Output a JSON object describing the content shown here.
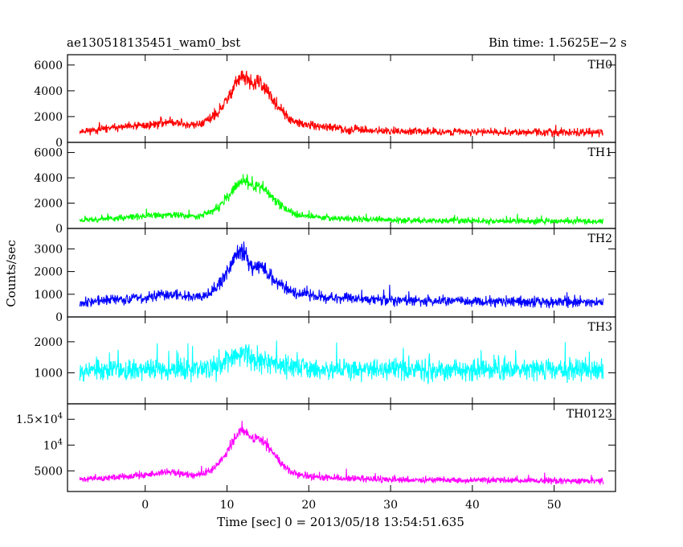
{
  "header": {
    "title": "ae130518135451_wam0_bst",
    "bin_time": "Bin time: 1.5625E−2 s"
  },
  "axis": {
    "ylabel": "Counts/sec",
    "xlabel": "Time [sec] 0 = 2013/05/18 13:54:51.635"
  },
  "chart_data": [
    {
      "type": "line",
      "name": "TH0",
      "color": "#ff0000",
      "x_range": [
        -8.0,
        56.0
      ],
      "xlim": [
        -9.5,
        57.5
      ],
      "ylim": [
        0,
        6800
      ],
      "yticks": [
        {
          "v": 0,
          "label": "0"
        },
        {
          "v": 2000,
          "label": "2000"
        },
        {
          "v": 4000,
          "label": "4000"
        },
        {
          "v": 6000,
          "label": "6000"
        }
      ],
      "profile_x": [
        -8,
        -4,
        0,
        3,
        6,
        8,
        9,
        10,
        11,
        12,
        13,
        14,
        15,
        16,
        17,
        18,
        20,
        25,
        30,
        40,
        50,
        56
      ],
      "profile_y": [
        850,
        1100,
        1300,
        1600,
        1300,
        1800,
        2300,
        3300,
        4600,
        5100,
        4500,
        4700,
        3800,
        3000,
        2200,
        1600,
        1300,
        1000,
        850,
        800,
        770,
        750
      ],
      "noise_sd": 260,
      "seed": 11
    },
    {
      "type": "line",
      "name": "TH1",
      "color": "#00ff00",
      "x_range": [
        -8.0,
        56.0
      ],
      "xlim": [
        -9.5,
        57.5
      ],
      "ylim": [
        0,
        6800
      ],
      "yticks": [
        {
          "v": 0,
          "label": "0"
        },
        {
          "v": 2000,
          "label": "2000"
        },
        {
          "v": 4000,
          "label": "4000"
        },
        {
          "v": 6000,
          "label": "6000"
        }
      ],
      "profile_x": [
        -8,
        -4,
        0,
        3,
        6,
        8,
        9,
        10,
        11,
        12,
        13,
        14,
        15,
        16,
        17,
        18,
        20,
        25,
        30,
        40,
        50,
        56
      ],
      "profile_y": [
        650,
        800,
        950,
        1100,
        950,
        1300,
        1700,
        2400,
        3200,
        3900,
        3300,
        3400,
        2800,
        2200,
        1600,
        1200,
        950,
        750,
        650,
        600,
        580,
        560
      ],
      "noise_sd": 210,
      "seed": 23
    },
    {
      "type": "line",
      "name": "TH2",
      "color": "#0000ff",
      "x_range": [
        -8.0,
        56.0
      ],
      "xlim": [
        -9.5,
        57.5
      ],
      "ylim": [
        0,
        3900
      ],
      "yticks": [
        {
          "v": 0,
          "label": "0"
        },
        {
          "v": 1000,
          "label": "1000"
        },
        {
          "v": 2000,
          "label": "2000"
        },
        {
          "v": 3000,
          "label": "3000"
        }
      ],
      "profile_x": [
        -8,
        -4,
        0,
        3,
        6,
        8,
        9,
        10,
        11,
        12,
        13,
        14,
        15,
        16,
        17,
        18,
        20,
        25,
        30,
        40,
        50,
        56
      ],
      "profile_y": [
        650,
        750,
        850,
        1000,
        900,
        1100,
        1400,
        1900,
        2700,
        2900,
        2200,
        2300,
        1900,
        1600,
        1300,
        1100,
        950,
        800,
        720,
        680,
        660,
        650
      ],
      "noise_sd": 200,
      "seed": 37
    },
    {
      "type": "line",
      "name": "TH3",
      "color": "#00ffff",
      "x_range": [
        -8.0,
        56.0
      ],
      "xlim": [
        -9.5,
        57.5
      ],
      "ylim": [
        0,
        2800
      ],
      "yticks": [
        {
          "v": 1000,
          "label": "1000"
        },
        {
          "v": 2000,
          "label": "2000"
        }
      ],
      "profile_x": [
        -8,
        0,
        6,
        9,
        10,
        11,
        12,
        13,
        14,
        15,
        17,
        20,
        30,
        40,
        50,
        56
      ],
      "profile_y": [
        1100,
        1100,
        1100,
        1200,
        1400,
        1550,
        1600,
        1500,
        1450,
        1350,
        1250,
        1150,
        1100,
        1100,
        1100,
        1100
      ],
      "noise_sd": 310,
      "seed": 53
    },
    {
      "type": "line",
      "name": "TH0123",
      "color": "#ff00ff",
      "x_range": [
        -8.0,
        56.0
      ],
      "xlim": [
        -9.5,
        57.5
      ],
      "ylim": [
        1000,
        18000
      ],
      "yticks": [
        {
          "v": 5000,
          "label": "5000"
        },
        {
          "v": 10000,
          "label": "10",
          "exp": "4"
        },
        {
          "v": 15000,
          "label": "1.5×10",
          "exp": "4"
        }
      ],
      "profile_x": [
        -8,
        -4,
        0,
        3,
        6,
        8,
        9,
        10,
        11,
        12,
        13,
        14,
        15,
        16,
        17,
        18,
        20,
        25,
        30,
        40,
        50,
        56
      ],
      "profile_y": [
        3300,
        3700,
        4200,
        4700,
        4200,
        5000,
        6300,
        8500,
        11500,
        13000,
        11000,
        11500,
        9500,
        7600,
        5800,
        4600,
        3900,
        3500,
        3300,
        3150,
        3100,
        3050
      ],
      "noise_sd": 550,
      "seed": 71
    }
  ]
}
